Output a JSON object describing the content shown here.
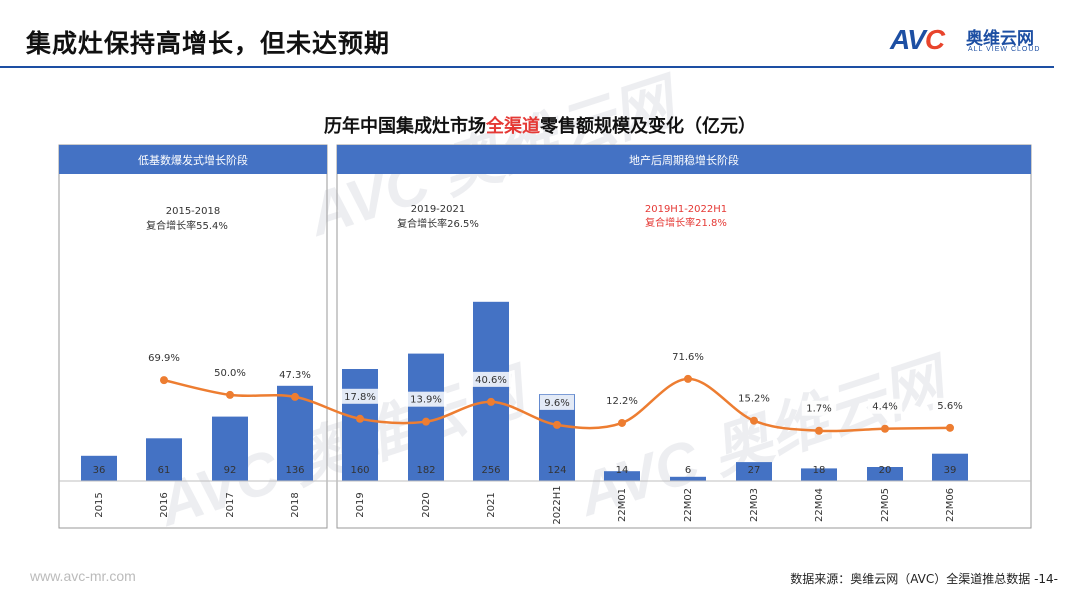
{
  "header": {
    "title": "集成灶保持高增长，但未达预期",
    "logo": {
      "mark_av": "AV",
      "mark_c": "C",
      "cn": "奥维云网",
      "en": "ALL VIEW CLOUD"
    }
  },
  "chart_title": {
    "prefix": "历年中国集成灶市场",
    "highlight": "全渠道",
    "suffix": "零售额规模及变化（亿元）"
  },
  "panels": [
    {
      "label": "低基数爆发式增长阶段"
    },
    {
      "label": "地产后周期稳增长阶段"
    }
  ],
  "annotations": [
    {
      "period": "2015-2018",
      "text": "复合增长率55.4%",
      "color": "#333333"
    },
    {
      "period": "2019-2021",
      "text": "复合增长率26.5%",
      "color": "#333333"
    },
    {
      "period": "2019H1-2022H1",
      "text": "复合增长率21.8%",
      "color": "#e53935"
    }
  ],
  "chart_data": {
    "type": "bar",
    "categories": [
      "2015",
      "2016",
      "2017",
      "2018",
      "2019",
      "2020",
      "2021",
      "2022H1",
      "22M01",
      "22M02",
      "22M03",
      "22M04",
      "22M05",
      "22M06"
    ],
    "series": [
      {
        "type": "bar",
        "values": [
          36,
          61,
          92,
          136,
          160,
          182,
          256,
          124,
          14,
          6,
          27,
          18,
          20,
          39
        ],
        "value_labels": [
          "36",
          "61",
          "92",
          "136",
          "160",
          "182",
          "256",
          "124",
          "14",
          "6",
          "27",
          "18",
          "20",
          "39"
        ],
        "color": "#4472c4"
      },
      {
        "type": "line",
        "values": [
          null,
          69.9,
          50.0,
          47.3,
          17.8,
          13.9,
          40.6,
          9.6,
          12.2,
          71.6,
          15.2,
          1.7,
          4.4,
          5.6
        ],
        "value_labels": [
          "",
          "69.9%",
          "50.0%",
          "47.3%",
          "17.8%",
          "13.9%",
          "40.6%",
          "9.6%",
          "12.2%",
          "71.6%",
          "15.2%",
          "1.7%",
          "4.4%",
          "5.6%"
        ],
        "color": "#ed7d31"
      }
    ],
    "groups": [
      {
        "label": "低基数爆发式增长阶段",
        "categories": [
          "2015",
          "2016",
          "2017",
          "2018"
        ]
      },
      {
        "label": "地产后周期稳增长阶段",
        "categories": [
          "2019",
          "2020",
          "2021",
          "2022H1",
          "22M01",
          "22M02",
          "22M03",
          "22M04",
          "22M05",
          "22M06"
        ]
      }
    ],
    "grid": false,
    "legend": "none"
  },
  "footer": {
    "url": "www.avc-mr.com",
    "source": "数据来源：奥维云网（AVC）全渠道推总数据 -14-"
  },
  "colors": {
    "accent": "#1d4fa3",
    "bar": "#4472c4",
    "line": "#ed7d31",
    "panel_header": "#4472c4",
    "highlight": "#e53935"
  }
}
